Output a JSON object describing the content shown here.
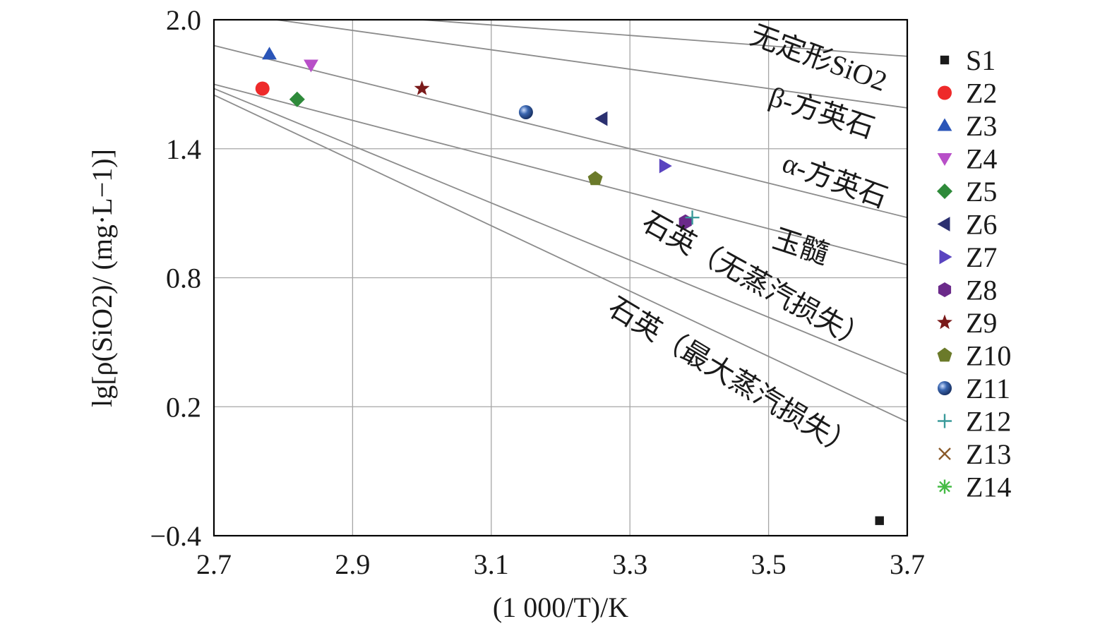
{
  "chart_data": {
    "type": "scatter",
    "xlabel": "(1 000/T)/K",
    "ylabel": "lg[ρ(SiO2)/ (mg·L−1)]",
    "xlim": [
      2.7,
      3.7
    ],
    "ylim": [
      -0.4,
      2.0
    ],
    "x_ticks": [
      "2.7",
      "2.9",
      "3.1",
      "3.3",
      "3.5",
      "3.7"
    ],
    "y_ticks": [
      "2.0",
      "1.4",
      "0.8",
      "0.2",
      "−0.4"
    ],
    "grid": true,
    "legend_position": "right",
    "reference_curves": [
      {
        "label": "无定形SiO2",
        "x": [
          3.0,
          3.7
        ],
        "y": [
          2.0,
          1.83
        ]
      },
      {
        "label": "β-方英石",
        "x": [
          2.79,
          3.7
        ],
        "y": [
          2.0,
          1.59
        ]
      },
      {
        "label": "α-方英石",
        "x": [
          2.7,
          3.7
        ],
        "y": [
          1.88,
          1.08
        ]
      },
      {
        "label": "玉髓",
        "x": [
          2.7,
          3.7
        ],
        "y": [
          1.7,
          0.86
        ]
      },
      {
        "label": "石英（无蒸汽损失）",
        "x": [
          2.7,
          3.7
        ],
        "y": [
          1.68,
          0.35
        ]
      },
      {
        "label": "石英（最大蒸汽损失）",
        "x": [
          2.7,
          3.7
        ],
        "y": [
          1.65,
          0.13
        ]
      }
    ],
    "series": [
      {
        "name": "S1",
        "color": "#1a1a1a",
        "marker": "square",
        "x": [
          3.66
        ],
        "y": [
          -0.33
        ]
      },
      {
        "name": "Z2",
        "color": "#ee2a2a",
        "marker": "circle",
        "x": [
          2.77
        ],
        "y": [
          1.68
        ]
      },
      {
        "name": "Z3",
        "color": "#2a55b8",
        "marker": "triangle-up",
        "x": [
          2.78
        ],
        "y": [
          1.84
        ]
      },
      {
        "name": "Z4",
        "color": "#b84fc8",
        "marker": "triangle-down",
        "x": [
          2.84
        ],
        "y": [
          1.79
        ]
      },
      {
        "name": "Z5",
        "color": "#2e8a3a",
        "marker": "diamond",
        "x": [
          2.82
        ],
        "y": [
          1.63
        ]
      },
      {
        "name": "Z6",
        "color": "#2b3070",
        "marker": "triangle-left",
        "x": [
          3.26
        ],
        "y": [
          1.54
        ]
      },
      {
        "name": "Z7",
        "color": "#5a44c0",
        "marker": "triangle-right",
        "x": [
          3.35
        ],
        "y": [
          1.32
        ]
      },
      {
        "name": "Z8",
        "color": "#6b2a8a",
        "marker": "hexagon",
        "x": [
          3.38
        ],
        "y": [
          1.06
        ]
      },
      {
        "name": "Z9",
        "color": "#7a1a1a",
        "marker": "star",
        "x": [
          3.0
        ],
        "y": [
          1.68
        ]
      },
      {
        "name": "Z10",
        "color": "#6b7a2a",
        "marker": "pentagon",
        "x": [
          3.25
        ],
        "y": [
          1.26
        ]
      },
      {
        "name": "Z11",
        "color": "#3a66b0",
        "marker": "sphere",
        "x": [
          3.15
        ],
        "y": [
          1.57
        ]
      },
      {
        "name": "Z12",
        "color": "#3a9a9a",
        "marker": "plus",
        "x": [
          3.39
        ],
        "y": [
          1.08
        ]
      },
      {
        "name": "Z13",
        "color": "#8a5a2a",
        "marker": "cross",
        "x": [],
        "y": []
      },
      {
        "name": "Z14",
        "color": "#44bb44",
        "marker": "asterisk",
        "x": [],
        "y": []
      }
    ]
  }
}
